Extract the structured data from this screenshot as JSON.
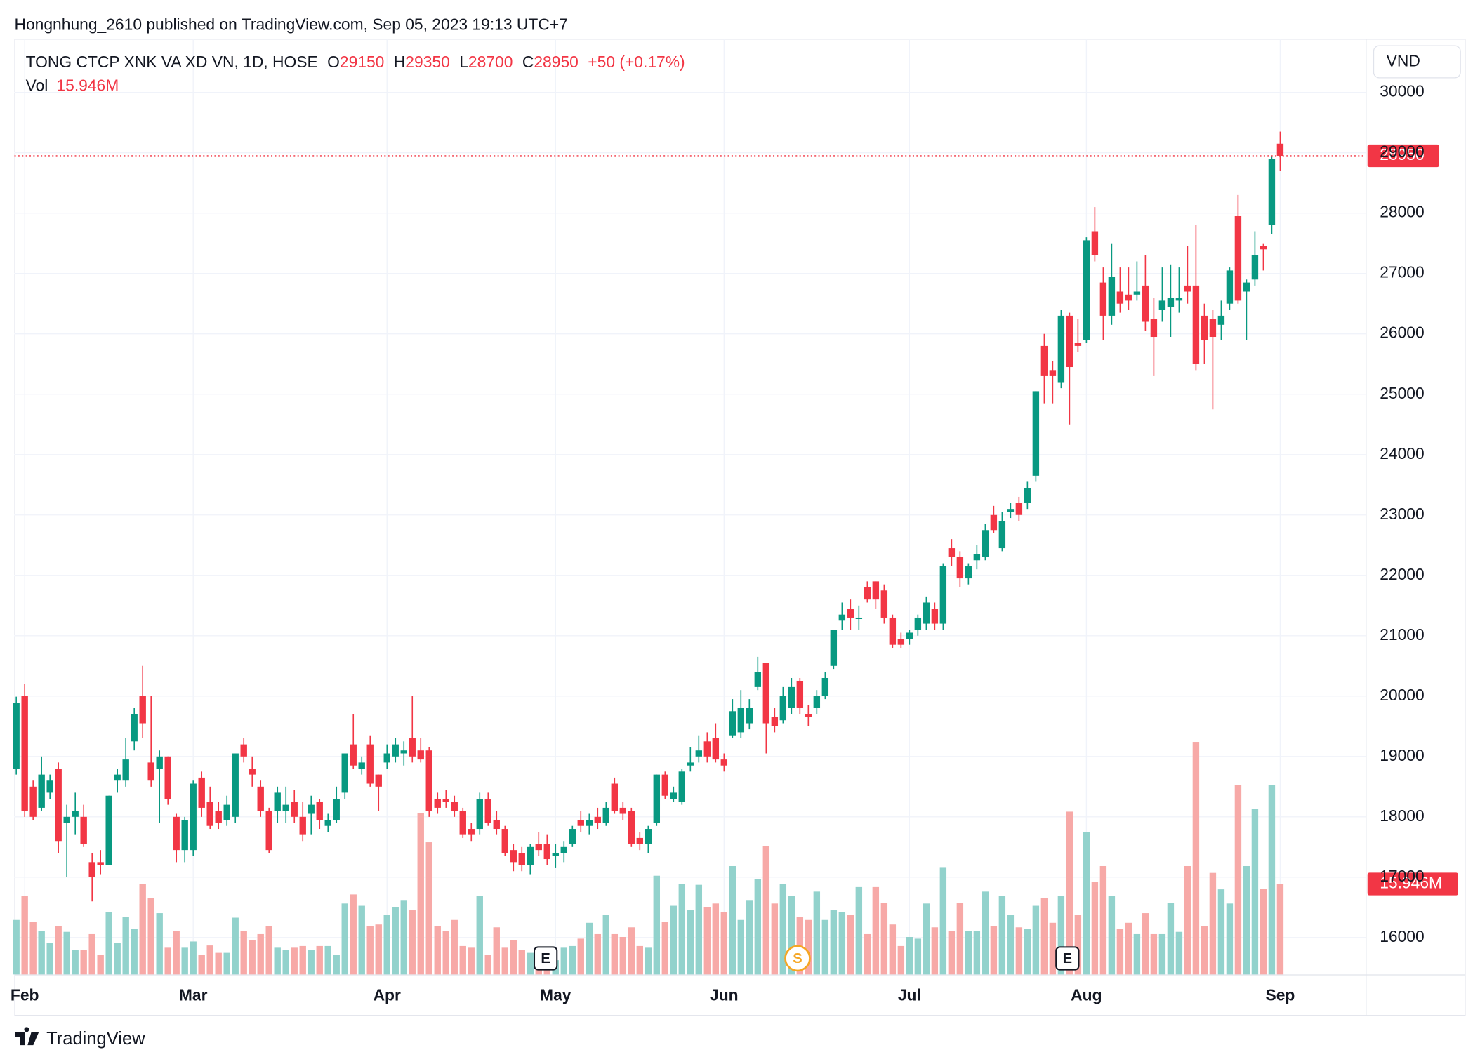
{
  "chart_data": {
    "type": "candlestick",
    "attribution": "Hongnhung_2610 published on TradingView.com, Sep 05, 2023 19:13 UTC+7",
    "title": "TONG CTCP XNK VA XD VN, 1D, HOSE",
    "field_labels": [
      "O",
      "H",
      "L",
      "C"
    ],
    "change": "+50 (+0.17%)",
    "volume_name": "Vol",
    "volume_label": "15.946M",
    "currency": "VND",
    "brand": "TradingView",
    "events": [
      "E",
      "S",
      "E"
    ],
    "up_color": "#089981",
    "down_color": "#f23645",
    "up_volume_color": "#92d2cc",
    "down_volume_color": "#f7a9a7",
    "grid": true,
    "ylim": [
      15390,
      30890
    ],
    "yticks": [
      16000,
      17000,
      18000,
      19000,
      20000,
      21000,
      22000,
      23000,
      24000,
      25000,
      26000,
      27000,
      28000,
      29000,
      30000
    ],
    "vlim": [
      0,
      165
    ],
    "xticks": [
      {
        "value": 1,
        "label": "Feb"
      },
      {
        "value": 21,
        "label": "Mar"
      },
      {
        "value": 44,
        "label": "Apr"
      },
      {
        "value": 64,
        "label": "May"
      },
      {
        "value": 84,
        "label": "Jun"
      },
      {
        "value": 106,
        "label": "Jul"
      },
      {
        "value": 127,
        "label": "Aug"
      },
      {
        "value": 150,
        "label": "Sep"
      }
    ],
    "open": [
      18800,
      20000,
      18500,
      18150,
      18400,
      18800,
      17900,
      18000,
      18000,
      17250,
      17250,
      17200,
      18600,
      18600,
      19250,
      20000,
      18900,
      18800,
      19000,
      18000,
      17450,
      17450,
      18650,
      18250,
      18100,
      17950,
      18000,
      19200,
      18800,
      18500,
      18100,
      18100,
      18100,
      18250,
      18000,
      18050,
      18250,
      17850,
      17950,
      18400,
      19200,
      18800,
      19200,
      18700,
      18900,
      19000,
      19050,
      19300,
      19100,
      19100,
      18300,
      18300,
      18250,
      18100,
      17800,
      17800,
      18300,
      17950,
      17800,
      17450,
      17400,
      17200,
      17550,
      17550,
      17350,
      17400,
      17550,
      17950,
      17850,
      18000,
      17900,
      18550,
      18150,
      18100,
      17650,
      17550,
      17900,
      18700,
      18300,
      18250,
      18850,
      19000,
      19250,
      19300,
      18950,
      19350,
      19400,
      19550,
      20150,
      20550,
      19650,
      19600,
      19800,
      20250,
      19700,
      19800,
      20000,
      20500,
      21250,
      21450,
      21300,
      21800,
      21900,
      21750,
      21300,
      20950,
      20950,
      21100,
      21200,
      21450,
      21200,
      22450,
      22300,
      21950,
      22250,
      22300,
      23000,
      22450,
      23050,
      23200,
      23200,
      23650,
      25800,
      25400,
      25200,
      26300,
      25850,
      25900,
      27700,
      26850,
      26300,
      26700,
      26650,
      26650,
      26800,
      26250,
      26400,
      26450,
      26550,
      26800,
      26800,
      26300,
      26250,
      26150,
      26500,
      27950,
      26700,
      26900,
      27450,
      27800,
      29150
    ],
    "high": [
      19990,
      20200,
      18600,
      19000,
      18700,
      18900,
      18200,
      18400,
      18200,
      17400,
      17450,
      18350,
      18800,
      19300,
      19800,
      20500,
      20000,
      19100,
      19000,
      18050,
      18000,
      18600,
      18750,
      18500,
      18250,
      18350,
      19050,
      19300,
      19000,
      18600,
      18150,
      18500,
      18500,
      18450,
      18250,
      18350,
      18300,
      18050,
      18500,
      19050,
      19700,
      19000,
      19350,
      18700,
      19200,
      19300,
      19250,
      20000,
      19300,
      19150,
      18400,
      18450,
      18350,
      18150,
      17900,
      18400,
      18400,
      18100,
      17850,
      17550,
      17500,
      17550,
      17750,
      17700,
      17550,
      17600,
      17850,
      18100,
      18050,
      18150,
      18250,
      18650,
      18250,
      18150,
      17750,
      17850,
      18700,
      18750,
      18500,
      18800,
      19150,
      19350,
      19400,
      19550,
      19050,
      19950,
      20100,
      19950,
      20650,
      20550,
      19800,
      20150,
      20300,
      20300,
      19850,
      20100,
      20400,
      21100,
      21550,
      21600,
      21500,
      21900,
      21900,
      21850,
      21350,
      21050,
      21100,
      21350,
      21650,
      21550,
      22200,
      22600,
      22400,
      22200,
      22500,
      22850,
      23150,
      23050,
      23200,
      23300,
      23550,
      25050,
      26000,
      25550,
      26400,
      26350,
      26250,
      27600,
      28100,
      27100,
      27500,
      27100,
      27100,
      27200,
      27300,
      26600,
      27100,
      27150,
      27100,
      27450,
      27800,
      26500,
      26400,
      26550,
      27100,
      28300,
      26900,
      27700,
      27500,
      28950,
      29350
    ],
    "low": [
      18700,
      18000,
      17950,
      18100,
      18300,
      17400,
      17000,
      17700,
      17500,
      16600,
      17050,
      17200,
      18400,
      18500,
      19100,
      19300,
      18500,
      17900,
      18200,
      17250,
      17250,
      17350,
      18000,
      17800,
      17800,
      17850,
      17900,
      18900,
      18500,
      18000,
      17400,
      17900,
      17900,
      17900,
      17600,
      17700,
      17800,
      17750,
      17900,
      18300,
      18800,
      18700,
      18500,
      18100,
      18800,
      18900,
      18850,
      18900,
      18900,
      18000,
      18050,
      18150,
      18000,
      17650,
      17600,
      17700,
      17850,
      17700,
      17350,
      17100,
      17100,
      17050,
      17350,
      17200,
      17150,
      17250,
      17500,
      17750,
      17700,
      17800,
      17850,
      18050,
      17950,
      17500,
      17450,
      17400,
      17850,
      18300,
      18250,
      18200,
      18750,
      18900,
      18900,
      18900,
      18750,
      19300,
      19300,
      19450,
      20100,
      19050,
      19400,
      19550,
      19700,
      19700,
      19500,
      19700,
      19950,
      20450,
      21100,
      21100,
      21100,
      21550,
      21450,
      21200,
      20800,
      20800,
      20850,
      21000,
      21100,
      21100,
      21100,
      22150,
      21800,
      21850,
      22100,
      22250,
      22700,
      22400,
      22950,
      22900,
      23100,
      23550,
      24850,
      24850,
      25100,
      24500,
      25700,
      25850,
      27200,
      25900,
      26150,
      26350,
      26400,
      26550,
      26050,
      25300,
      26200,
      25950,
      26350,
      26500,
      25400,
      25500,
      24750,
      25900,
      26400,
      26500,
      25900,
      26800,
      27050,
      27650,
      28700
    ],
    "close": [
      19890,
      18100,
      18000,
      18700,
      18600,
      17600,
      18000,
      18100,
      17550,
      17000,
      17200,
      18350,
      18700,
      18950,
      19700,
      19550,
      18600,
      19000,
      18300,
      17450,
      17950,
      18550,
      18150,
      17850,
      17900,
      18200,
      19050,
      19000,
      18700,
      18100,
      17450,
      18400,
      18200,
      18000,
      17700,
      18200,
      17950,
      17950,
      18300,
      19050,
      18850,
      18900,
      18550,
      18500,
      19050,
      19200,
      19100,
      19000,
      18950,
      18100,
      18150,
      18250,
      18100,
      17700,
      17700,
      18300,
      17900,
      17800,
      17400,
      17250,
      17200,
      17500,
      17450,
      17300,
      17400,
      17500,
      17800,
      17850,
      17950,
      17900,
      18150,
      18100,
      18050,
      17550,
      17550,
      17800,
      18700,
      18350,
      18400,
      18750,
      18900,
      19100,
      19000,
      18950,
      18850,
      19750,
      19800,
      19800,
      20400,
      19550,
      19500,
      20000,
      20150,
      19800,
      19650,
      20000,
      20300,
      21100,
      21350,
      21300,
      21300,
      21600,
      21600,
      21300,
      20850,
      20850,
      21050,
      21300,
      21550,
      21200,
      22150,
      22300,
      21950,
      22150,
      22350,
      22750,
      22750,
      22900,
      23100,
      23000,
      23450,
      25050,
      25300,
      25300,
      26300,
      25450,
      25800,
      27550,
      27300,
      26300,
      26950,
      26500,
      26550,
      26700,
      26200,
      25950,
      26550,
      26600,
      26600,
      26700,
      25500,
      25900,
      25950,
      26300,
      27050,
      26550,
      26850,
      27300,
      27400,
      28900,
      28950
    ],
    "volume": [
      9.6,
      13.8,
      9.3,
      7.6,
      5.5,
      8.5,
      7.5,
      4.3,
      4.3,
      7.1,
      3.5,
      11.0,
      5.5,
      10.1,
      8.0,
      15.9,
      13.5,
      10.8,
      4.7,
      7.6,
      4.7,
      5.8,
      3.5,
      5.1,
      3.8,
      3.8,
      10.0,
      7.6,
      6.0,
      7.1,
      8.5,
      4.7,
      4.3,
      4.7,
      5.0,
      4.3,
      5.0,
      5.0,
      3.5,
      12.5,
      14.1,
      12.1,
      8.5,
      8.8,
      10.5,
      11.8,
      13.0,
      11.3,
      28.4,
      23.3,
      8.5,
      7.6,
      9.6,
      5.0,
      4.7,
      13.8,
      3.5,
      8.3,
      4.7,
      6.0,
      4.3,
      3.8,
      3.3,
      2.2,
      2.5,
      4.7,
      5.0,
      6.3,
      9.1,
      7.1,
      10.5,
      7.1,
      6.6,
      8.3,
      5.0,
      4.7,
      17.4,
      9.3,
      12.1,
      15.9,
      11.3,
      15.8,
      11.8,
      12.5,
      11.0,
      19.1,
      9.6,
      13.0,
      16.8,
      22.6,
      12.5,
      15.9,
      13.8,
      10.1,
      9.6,
      14.6,
      9.6,
      11.3,
      11.0,
      10.5,
      15.4,
      7.1,
      15.4,
      12.6,
      8.8,
      5.0,
      6.6,
      6.3,
      12.5,
      8.3,
      18.8,
      7.6,
      12.6,
      7.6,
      7.6,
      14.6,
      8.5,
      13.8,
      10.5,
      8.3,
      8.0,
      12.1,
      13.5,
      9.1,
      13.8,
      28.7,
      10.5,
      25.1,
      16.3,
      19.1,
      13.8,
      8.0,
      9.1,
      7.1,
      10.8,
      7.1,
      7.1,
      12.6,
      7.5,
      19.1,
      41.0,
      8.5,
      17.9,
      15.0,
      12.5,
      33.4,
      19.1,
      29.2,
      15.1,
      33.4,
      15.946
    ]
  }
}
